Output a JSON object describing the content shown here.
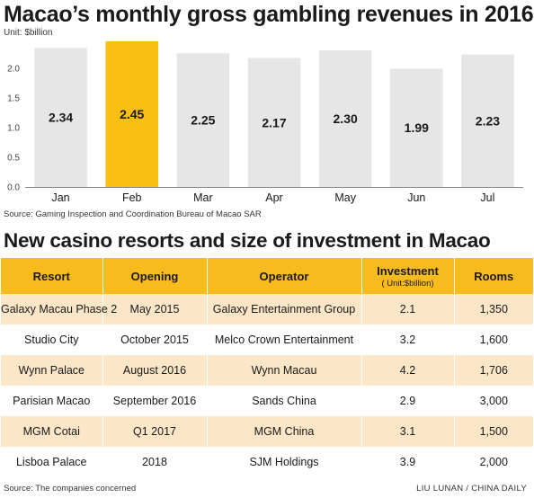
{
  "chart_data": {
    "type": "bar",
    "title": "Macao’s monthly gross gambling revenues in 2016",
    "unit_label": "Unit: $billion",
    "categories": [
      "Jan",
      "Feb",
      "Mar",
      "Apr",
      "May",
      "Jun",
      "Jul"
    ],
    "values": [
      2.34,
      2.45,
      2.25,
      2.17,
      2.3,
      1.99,
      2.23
    ],
    "value_labels": [
      "2.34",
      "2.45",
      "2.25",
      "2.17",
      "2.30",
      "1.99",
      "2.23"
    ],
    "highlight_index": 1,
    "ylim": [
      0,
      2.45
    ],
    "yticks": [
      0.0,
      0.5,
      1.0,
      1.5,
      2.0
    ],
    "ytick_labels": [
      "0.0",
      "0.5",
      "1.0",
      "1.5",
      "2.0"
    ],
    "colors": {
      "bar": "#e6e6e6",
      "highlight": "#fbbf14"
    },
    "source": "Source: Gaming Inspection and Coordination Bureau of Macao SAR"
  },
  "table": {
    "title": "New casino resorts and size of investment in Macao",
    "headers": {
      "resort": "Resort",
      "opening": "Opening",
      "operator": "Operator",
      "investment": "Investment",
      "investment_unit": "( Unit:$billion)",
      "rooms": "Rooms"
    },
    "rows": [
      {
        "resort": "Galaxy Macau Phase 2",
        "opening": "May 2015",
        "operator": "Galaxy Entertainment Group",
        "investment": "2.1",
        "rooms": "1,350"
      },
      {
        "resort": "Studio City",
        "opening": "October 2015",
        "operator": "Melco Crown Entertainment",
        "investment": "3.2",
        "rooms": "1,600"
      },
      {
        "resort": "Wynn Palace",
        "opening": "August 2016",
        "operator": "Wynn Macau",
        "investment": "4.2",
        "rooms": "1,706"
      },
      {
        "resort": "Parisian Macao",
        "opening": "September 2016",
        "operator": "Sands China",
        "investment": "2.9",
        "rooms": "3,000"
      },
      {
        "resort": "MGM Cotai",
        "opening": "Q1 2017",
        "operator": "MGM China",
        "investment": "3.1",
        "rooms": "1,500"
      },
      {
        "resort": "Lisboa Palace",
        "opening": "2018",
        "operator": "SJM Holdings",
        "investment": "3.9",
        "rooms": "2,000"
      }
    ],
    "colors": {
      "header": "#f8bb1e",
      "stripe": "#fbe6c7"
    },
    "source": "Source: The companies concerned",
    "credit": "LIU LUNAN / CHINA DAILY"
  }
}
